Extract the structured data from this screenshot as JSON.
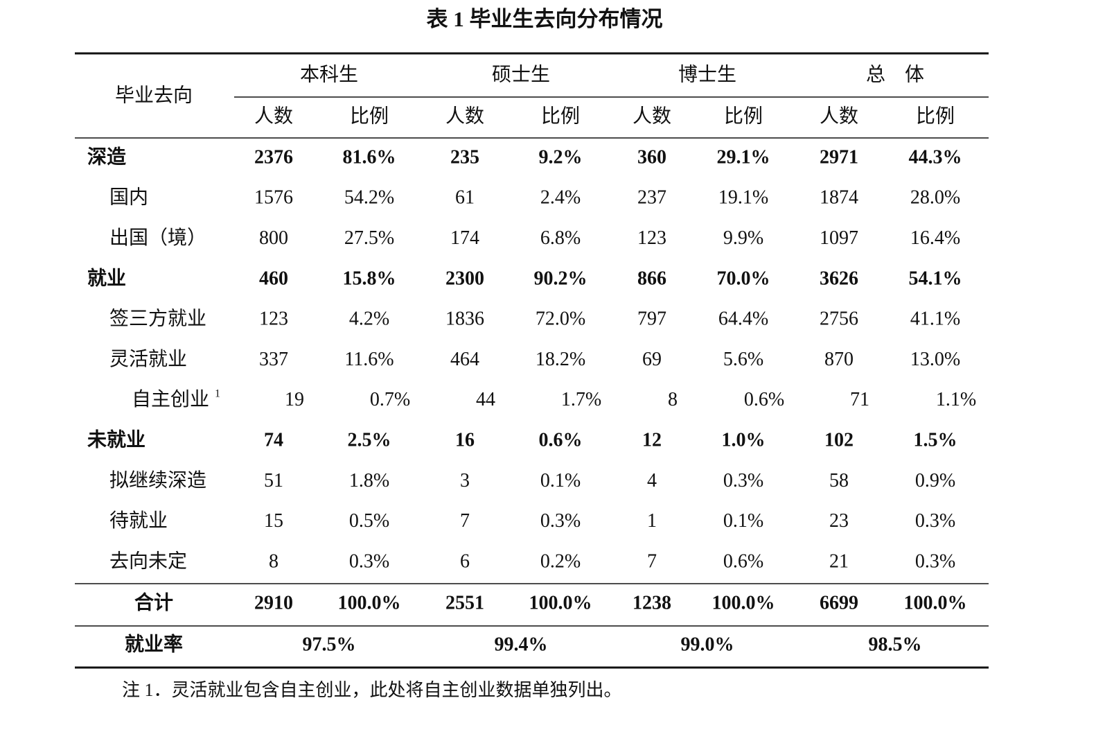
{
  "title": "表 1 毕业生去向分布情况",
  "table": {
    "corner": "毕业去向",
    "groups": [
      "本科生",
      "硕士生",
      "博士生",
      "总　体"
    ],
    "subheaders": [
      "人数",
      "比例",
      "人数",
      "比例",
      "人数",
      "比例",
      "人数",
      "比例"
    ],
    "rows": [
      {
        "label": "深造",
        "cells": [
          2376,
          "81.6%",
          235,
          "9.2%",
          360,
          "29.1%",
          2971,
          "44.3%"
        ],
        "children": [
          {
            "label": "国内",
            "cells": [
              1576,
              "54.2%",
              61,
              "2.4%",
              237,
              "19.1%",
              1874,
              "28.0%"
            ]
          },
          {
            "label": "出国（境）",
            "cells": [
              800,
              "27.5%",
              174,
              "6.8%",
              123,
              "9.9%",
              1097,
              "16.4%"
            ]
          }
        ]
      },
      {
        "label": "就业",
        "cells": [
          460,
          "15.8%",
          2300,
          "90.2%",
          866,
          "70.0%",
          3626,
          "54.1%"
        ],
        "children": [
          {
            "label": "签三方就业",
            "cells": [
              123,
              "4.2%",
              1836,
              "72.0%",
              797,
              "64.4%",
              2756,
              "41.1%"
            ]
          },
          {
            "label": "灵活就业",
            "cells": [
              337,
              "11.6%",
              464,
              "18.2%",
              69,
              "5.6%",
              870,
              "13.0%"
            ],
            "children": [
              {
                "label": "自主创业",
                "footnote_mark": "1",
                "cells": [
                  19,
                  "0.7%",
                  44,
                  "1.7%",
                  8,
                  "0.6%",
                  71,
                  "1.1%"
                ]
              }
            ]
          }
        ]
      },
      {
        "label": "未就业",
        "cells": [
          74,
          "2.5%",
          16,
          "0.6%",
          12,
          "1.0%",
          102,
          "1.5%"
        ],
        "children": [
          {
            "label": "拟继续深造",
            "cells": [
              51,
              "1.8%",
              3,
              "0.1%",
              4,
              "0.3%",
              58,
              "0.9%"
            ]
          },
          {
            "label": "待就业",
            "cells": [
              15,
              "0.5%",
              7,
              "0.3%",
              1,
              "0.1%",
              23,
              "0.3%"
            ]
          },
          {
            "label": "去向未定",
            "cells": [
              8,
              "0.3%",
              6,
              "0.2%",
              7,
              "0.6%",
              21,
              "0.3%"
            ]
          }
        ]
      }
    ],
    "total": {
      "label": "合计",
      "cells": [
        2910,
        "100.0%",
        2551,
        "100.0%",
        1238,
        "100.0%",
        6699,
        "100.0%"
      ]
    },
    "rate": {
      "label": "就业率",
      "cells": [
        "97.5%",
        "99.4%",
        "99.0%",
        "98.5%"
      ]
    }
  },
  "note": "注 1．灵活就业包含自主创业，此处将自主创业数据单独列出。"
}
